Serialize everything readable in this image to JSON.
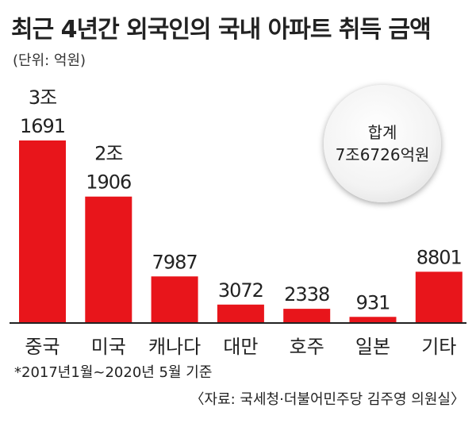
{
  "title": "최근 4년간 외국인의 국내 아파트 취득 금액",
  "unit": "(단위: 억원)",
  "total": {
    "label": "합계",
    "value": "7조6726억원"
  },
  "footnote": "*2017년1월~2020년 5월 기준",
  "source": "〈자료: 국세청·더불어민주당 김주영 의원실〉",
  "colors": {
    "bar": "#e8151b",
    "axis": "#222222",
    "text": "#222222"
  },
  "chart_data": {
    "type": "bar",
    "title": "최근 4년간 외국인의 국내 아파트 취득 금액",
    "ylabel": "(단위: 억원)",
    "categories": [
      "중국",
      "미국",
      "캐나다",
      "대만",
      "호주",
      "일본",
      "기타"
    ],
    "values": [
      31691,
      21906,
      7987,
      3072,
      2338,
      931,
      8801
    ],
    "labels": [
      [
        "3조",
        "1691"
      ],
      [
        "2조",
        "1906"
      ],
      [
        "7987"
      ],
      [
        "3072"
      ],
      [
        "2338"
      ],
      [
        "931"
      ],
      [
        "8801"
      ]
    ],
    "grid": false,
    "legend": "none"
  }
}
